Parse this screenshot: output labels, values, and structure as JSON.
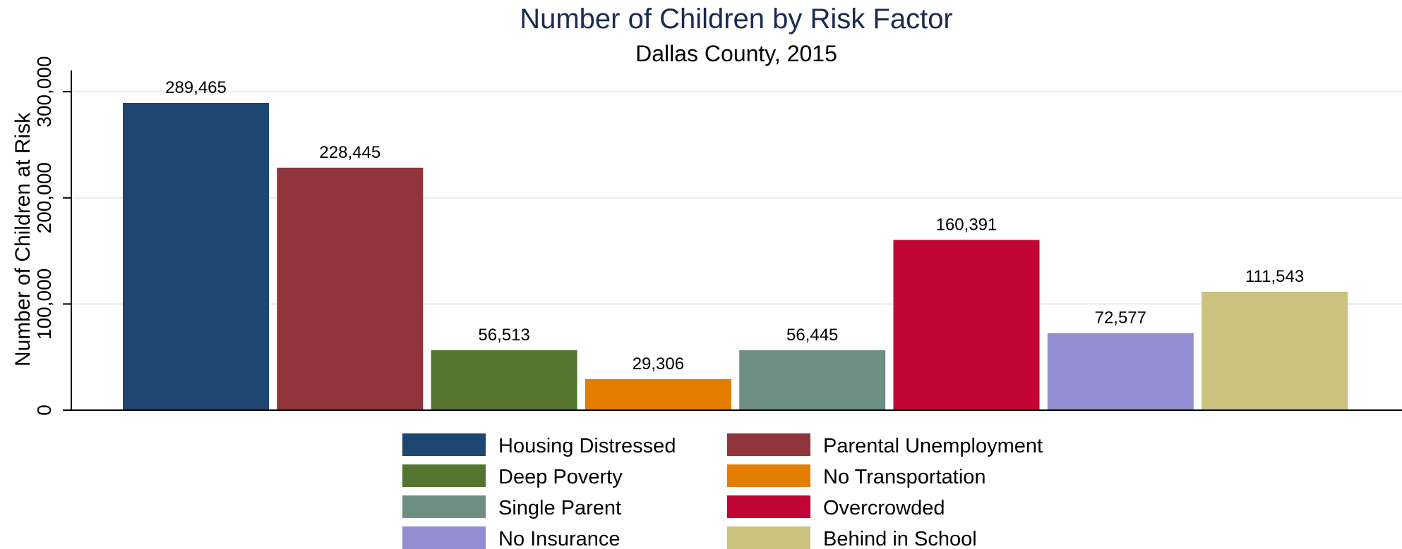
{
  "chart_data": {
    "type": "bar",
    "title": "Number of Children by Risk Factor",
    "subtitle": "Dallas County, 2015",
    "ylabel": "Number of Children at Risk",
    "xlabel": "",
    "ylim": [
      0,
      320000
    ],
    "yticks": [
      0,
      100000,
      200000,
      300000
    ],
    "ytick_labels": [
      "0",
      "100,000",
      "200,000",
      "300,000"
    ],
    "grid": true,
    "legend_position": "bottom",
    "series": [
      {
        "name": "Housing Distressed",
        "value": 289465,
        "label": "289,465",
        "color": "#1d4670"
      },
      {
        "name": "Parental Unemployment",
        "value": 228445,
        "label": "228,445",
        "color": "#8f353b"
      },
      {
        "name": "Deep Poverty",
        "value": 56513,
        "label": "56,513",
        "color": "#557430"
      },
      {
        "name": "No Transportation",
        "value": 29306,
        "label": "29,306",
        "color": "#e37e00"
      },
      {
        "name": "Single Parent",
        "value": 56445,
        "label": "56,445",
        "color": "#6e8e84"
      },
      {
        "name": "Overcrowded",
        "value": 160391,
        "label": "160,391",
        "color": "#c10534"
      },
      {
        "name": "No Insurance",
        "value": 72577,
        "label": "72,577",
        "color": "#938dd2"
      },
      {
        "name": "Behind in School",
        "value": 111543,
        "label": "111,543",
        "color": "#cac27e"
      }
    ]
  }
}
